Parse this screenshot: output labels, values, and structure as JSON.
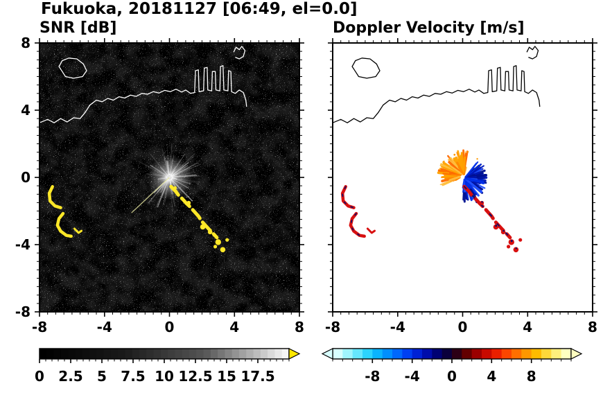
{
  "title": "Fukuoka, 20181127 [06:49, el=0.0]",
  "chart_data": {
    "type": "heatmap",
    "description": "Dual-panel weather radar PPI display (SNR and Doppler velocity), axes in km-scale units",
    "xlim": [
      -8,
      8
    ],
    "ylim": [
      -8,
      8
    ],
    "coastline": [
      [
        [
          -8,
          3.25
        ],
        [
          -7.5,
          3.45
        ],
        [
          -7.1,
          3.25
        ],
        [
          -6.7,
          3.5
        ],
        [
          -6.3,
          3.3
        ],
        [
          -5.9,
          3.55
        ],
        [
          -5.5,
          3.5
        ],
        [
          -5.2,
          3.85
        ],
        [
          -4.9,
          4.3
        ],
        [
          -4.5,
          4.6
        ],
        [
          -4.15,
          4.5
        ],
        [
          -3.8,
          4.7
        ],
        [
          -3.45,
          4.6
        ],
        [
          -3.1,
          4.8
        ],
        [
          -2.75,
          4.72
        ],
        [
          -2.4,
          4.9
        ],
        [
          -2.05,
          4.82
        ],
        [
          -1.7,
          5.0
        ],
        [
          -1.35,
          4.95
        ],
        [
          -1.0,
          5.1
        ],
        [
          -0.65,
          5.02
        ],
        [
          -0.3,
          5.18
        ],
        [
          0.05,
          5.1
        ],
        [
          0.4,
          5.25
        ],
        [
          0.75,
          5.08
        ],
        [
          1.0,
          5.2
        ],
        [
          1.3,
          5.0
        ],
        [
          1.55,
          5.05
        ],
        [
          1.6,
          6.35
        ],
        [
          1.78,
          6.4
        ],
        [
          1.82,
          5.1
        ],
        [
          2.1,
          5.15
        ],
        [
          2.14,
          6.5
        ],
        [
          2.32,
          6.55
        ],
        [
          2.36,
          5.2
        ],
        [
          2.6,
          5.15
        ],
        [
          2.64,
          6.3
        ],
        [
          2.82,
          6.3
        ],
        [
          2.86,
          5.2
        ],
        [
          3.1,
          5.15
        ],
        [
          3.14,
          6.6
        ],
        [
          3.3,
          6.65
        ],
        [
          3.35,
          5.2
        ],
        [
          3.6,
          5.15
        ],
        [
          3.64,
          6.35
        ],
        [
          3.78,
          6.3
        ],
        [
          3.82,
          5.1
        ],
        [
          4.05,
          5.0
        ],
        [
          4.3,
          5.2
        ],
        [
          4.55,
          5.05
        ],
        [
          4.7,
          4.6
        ],
        [
          4.75,
          4.2
        ]
      ],
      [
        [
          -6.6,
          6.3
        ],
        [
          -6.8,
          6.6
        ],
        [
          -6.6,
          6.95
        ],
        [
          -6.2,
          7.1
        ],
        [
          -5.7,
          7.05
        ],
        [
          -5.3,
          6.75
        ],
        [
          -5.1,
          6.35
        ],
        [
          -5.35,
          6.0
        ],
        [
          -5.9,
          5.9
        ],
        [
          -6.4,
          6.0
        ],
        [
          -6.6,
          6.3
        ]
      ],
      [
        [
          3.95,
          7.45
        ],
        [
          4.1,
          7.75
        ],
        [
          4.3,
          7.6
        ],
        [
          4.45,
          7.8
        ],
        [
          4.65,
          7.55
        ],
        [
          4.55,
          7.2
        ],
        [
          4.3,
          7.05
        ],
        [
          4.05,
          7.15
        ]
      ]
    ],
    "panels": [
      {
        "id": "snr",
        "title": "SNR [dB]",
        "bg": "#000000",
        "coast_color": "#ffffff",
        "noise": true,
        "xlim": [
          -8,
          8
        ],
        "ylim": [
          -8,
          8
        ],
        "xticks": [
          -8,
          -4,
          0,
          4,
          8
        ],
        "xtick_labels": [
          "-8",
          "-4",
          "0",
          "4",
          "8"
        ],
        "yticks": [
          8,
          4,
          0,
          -4,
          -8
        ],
        "ytick_labels": [
          "8",
          "4",
          "0",
          "-4",
          "-8"
        ],
        "minor_step": 0.5,
        "features": [
          {
            "type": "glow",
            "cx": 0,
            "cy": 0,
            "r": 0.55,
            "color": "#ffffff"
          },
          {
            "type": "starburst",
            "cx": 0,
            "cy": 0,
            "rays": 130,
            "rmax": 2.2,
            "seed": 13,
            "color": "#ffffff"
          },
          {
            "type": "spoke",
            "cx": 0,
            "cy": 0,
            "angle": 223,
            "len": 3.2,
            "width": 1.2,
            "color": "#e8e8a0",
            "opacity": 0.85
          },
          {
            "type": "spoke",
            "cx": 0,
            "cy": 0,
            "angle": 38,
            "len": 1.5,
            "width": 1,
            "color": "#ffffff",
            "opacity": 0.6
          },
          {
            "type": "polyline",
            "points": [
              [
                -7.2,
                -0.55
              ],
              [
                -7.4,
                -0.95
              ],
              [
                -7.35,
                -1.4
              ],
              [
                -7.05,
                -1.7
              ],
              [
                -6.7,
                -1.8
              ]
            ],
            "color": "#ffe828",
            "width": 4.5
          },
          {
            "type": "polyline",
            "points": [
              [
                -6.55,
                -2.15
              ],
              [
                -6.8,
                -2.45
              ],
              [
                -6.9,
                -2.85
              ],
              [
                -6.7,
                -3.2
              ],
              [
                -6.35,
                -3.45
              ],
              [
                -6.05,
                -3.5
              ]
            ],
            "color": "#ffe828",
            "width": 4.5
          },
          {
            "type": "polyline",
            "points": [
              [
                -5.85,
                -3.05
              ],
              [
                -5.6,
                -3.3
              ],
              [
                -5.42,
                -3.18
              ]
            ],
            "color": "#ffe828",
            "width": 3
          },
          {
            "type": "polyline",
            "points": [
              [
                0.1,
                -0.55
              ],
              [
                0.38,
                -0.82
              ],
              [
                0.55,
                -1.05
              ],
              [
                0.82,
                -1.3
              ],
              [
                1.05,
                -1.55
              ],
              [
                1.3,
                -1.78
              ],
              [
                1.52,
                -2.02
              ],
              [
                1.78,
                -2.3
              ],
              [
                1.98,
                -2.6
              ],
              [
                2.18,
                -2.82
              ],
              [
                2.45,
                -3.1
              ],
              [
                2.7,
                -3.35
              ],
              [
                2.92,
                -3.58
              ]
            ],
            "color": "#ffe828",
            "width": 5,
            "dash": "16 7"
          },
          {
            "type": "blobs",
            "points": [
              [
                2.05,
                -2.95,
                0.16
              ],
              [
                2.5,
                -3.25,
                0.14
              ],
              [
                3.0,
                -3.85,
                0.18
              ],
              [
                3.28,
                -4.3,
                0.16
              ],
              [
                3.55,
                -3.72,
                0.11
              ],
              [
                2.82,
                -4.12,
                0.11
              ],
              [
                1.18,
                -1.52,
                0.13
              ],
              [
                0.35,
                -0.62,
                0.1
              ]
            ],
            "color": "#ffe828"
          }
        ],
        "colorbar": {
          "min": 0,
          "max": 20,
          "tick_values": [
            0,
            2.5,
            5,
            7.5,
            10,
            12.5,
            15,
            17.5
          ],
          "tick_labels": [
            "0",
            "2.5",
            "5",
            "7.5",
            "10",
            "12.5",
            "15",
            "17.5"
          ],
          "minor_step": 0.5,
          "gradient": [
            "#000000",
            "#1a1a1a",
            "#555555",
            "#f6f6f6"
          ],
          "segments": 35,
          "left_arrow": null,
          "right_arrow": "#ffe800"
        }
      },
      {
        "id": "velocity",
        "title": "Doppler Velocity [m/s]",
        "bg": "#ffffff",
        "coast_color": "#000000",
        "noise": false,
        "xlim": [
          -8,
          8
        ],
        "ylim": [
          -8,
          8
        ],
        "xticks": [
          -8,
          -4,
          0,
          4,
          8
        ],
        "xtick_labels": [
          "-8",
          "-4",
          "0",
          "4",
          "8"
        ],
        "yticks": [
          8,
          4,
          0,
          -4,
          -8
        ],
        "ytick_labels": null,
        "minor_step": 0.5,
        "features": [
          {
            "type": "fan",
            "cx": 0.05,
            "cy": 0.12,
            "a0": 70,
            "a1": 215,
            "n": 75,
            "rmin": 0.15,
            "rmax": 1.55,
            "seed": 7,
            "colors": [
              "#ff8800",
              "#ffa200",
              "#ff6a00",
              "#ffc040"
            ]
          },
          {
            "type": "fan",
            "cx": 0.12,
            "cy": -0.05,
            "a0": -100,
            "a1": 55,
            "n": 95,
            "rmin": 0.12,
            "rmax": 1.45,
            "seed": 21,
            "colors": [
              "#0030e8",
              "#0018b8",
              "#001090",
              "#2050ff"
            ]
          },
          {
            "type": "polyline",
            "points": [
              [
                0.5,
                -0.75
              ],
              [
                0.72,
                -1.1
              ],
              [
                0.88,
                -1.45
              ]
            ],
            "color": "#001090",
            "width": 4
          },
          {
            "type": "blobs",
            "points": [
              [
                -0.5,
                1.35,
                0.06
              ],
              [
                0.32,
                1.52,
                0.05
              ],
              [
                -1.15,
                0.95,
                0.05
              ],
              [
                0.9,
                1.1,
                0.05
              ]
            ],
            "color": "#ff9900"
          },
          {
            "type": "blobs",
            "points": [
              [
                0,
                0.02,
                0.13
              ]
            ],
            "color": "#ffffff"
          },
          {
            "type": "polyline",
            "points": [
              [
                -7.2,
                -0.55
              ],
              [
                -7.4,
                -0.95
              ],
              [
                -7.35,
                -1.4
              ],
              [
                -7.05,
                -1.7
              ],
              [
                -6.7,
                -1.8
              ]
            ],
            "color": "#d81010",
            "width": 4.5
          },
          {
            "type": "polyline",
            "points": [
              [
                -7.2,
                -0.55
              ],
              [
                -7.4,
                -0.95
              ],
              [
                -7.35,
                -1.4
              ],
              [
                -7.05,
                -1.7
              ],
              [
                -6.7,
                -1.8
              ]
            ],
            "color": "#001070",
            "width": 1.6,
            "dash": "3 9"
          },
          {
            "type": "polyline",
            "points": [
              [
                -6.55,
                -2.15
              ],
              [
                -6.8,
                -2.45
              ],
              [
                -6.9,
                -2.85
              ],
              [
                -6.7,
                -3.2
              ],
              [
                -6.35,
                -3.45
              ],
              [
                -6.05,
                -3.5
              ]
            ],
            "color": "#d81010",
            "width": 4.5
          },
          {
            "type": "polyline",
            "points": [
              [
                -6.55,
                -2.15
              ],
              [
                -6.8,
                -2.45
              ],
              [
                -6.9,
                -2.85
              ],
              [
                -6.7,
                -3.2
              ],
              [
                -6.35,
                -3.45
              ],
              [
                -6.05,
                -3.5
              ]
            ],
            "color": "#001070",
            "width": 1.6,
            "dash": "3 9"
          },
          {
            "type": "polyline",
            "points": [
              [
                -5.85,
                -3.05
              ],
              [
                -5.6,
                -3.3
              ],
              [
                -5.42,
                -3.18
              ]
            ],
            "color": "#d81010",
            "width": 3
          },
          {
            "type": "polyline",
            "points": [
              [
                0.1,
                -0.55
              ],
              [
                0.38,
                -0.82
              ],
              [
                0.55,
                -1.05
              ],
              [
                0.82,
                -1.3
              ],
              [
                1.05,
                -1.55
              ],
              [
                1.3,
                -1.78
              ],
              [
                1.52,
                -2.02
              ],
              [
                1.78,
                -2.3
              ],
              [
                1.98,
                -2.6
              ],
              [
                2.18,
                -2.82
              ],
              [
                2.45,
                -3.1
              ],
              [
                2.7,
                -3.35
              ],
              [
                2.92,
                -3.58
              ]
            ],
            "color": "#d81010",
            "width": 5,
            "dash": "16 7"
          },
          {
            "type": "polyline",
            "points": [
              [
                0.1,
                -0.55
              ],
              [
                0.38,
                -0.82
              ],
              [
                0.55,
                -1.05
              ],
              [
                0.82,
                -1.3
              ],
              [
                1.05,
                -1.55
              ],
              [
                1.3,
                -1.78
              ],
              [
                1.52,
                -2.02
              ],
              [
                1.78,
                -2.3
              ],
              [
                1.98,
                -2.6
              ],
              [
                2.18,
                -2.82
              ],
              [
                2.45,
                -3.1
              ],
              [
                2.7,
                -3.35
              ],
              [
                2.92,
                -3.58
              ]
            ],
            "color": "#001070",
            "width": 1.8,
            "dash": "4 14"
          },
          {
            "type": "blobs",
            "points": [
              [
                2.05,
                -2.95,
                0.16
              ],
              [
                2.5,
                -3.25,
                0.14
              ],
              [
                3.0,
                -3.85,
                0.18
              ],
              [
                3.28,
                -4.3,
                0.16
              ],
              [
                3.55,
                -3.72,
                0.11
              ],
              [
                2.82,
                -4.12,
                0.11
              ],
              [
                1.18,
                -1.52,
                0.13
              ]
            ],
            "color": "#d81010"
          },
          {
            "type": "blobs",
            "points": [
              [
                2.06,
                -2.88,
                0.06
              ],
              [
                2.52,
                -3.18,
                0.05
              ],
              [
                3.02,
                -3.78,
                0.06
              ],
              [
                1.2,
                -1.46,
                0.05
              ],
              [
                3.3,
                -4.22,
                0.05
              ]
            ],
            "color": "#001070"
          }
        ],
        "colorbar": {
          "min": -12,
          "max": 12,
          "tick_values": [
            -8,
            -4,
            0,
            4,
            8
          ],
          "tick_labels": [
            "-8",
            "-4",
            "0",
            "4",
            "8"
          ],
          "minor_step": 1,
          "gradient": [
            "#d8ffff",
            "#88f0ff",
            "#30d8ff",
            "#00aaff",
            "#0072ff",
            "#0038f0",
            "#0010c0",
            "#000070",
            "#100020",
            "#600000",
            "#b00000",
            "#e81800",
            "#ff5000",
            "#ff8c00",
            "#ffc000",
            "#ffe860",
            "#ffffc0"
          ],
          "segments": 24,
          "left_arrow": "#d8ffff",
          "right_arrow": "#ffffc0"
        }
      }
    ]
  }
}
